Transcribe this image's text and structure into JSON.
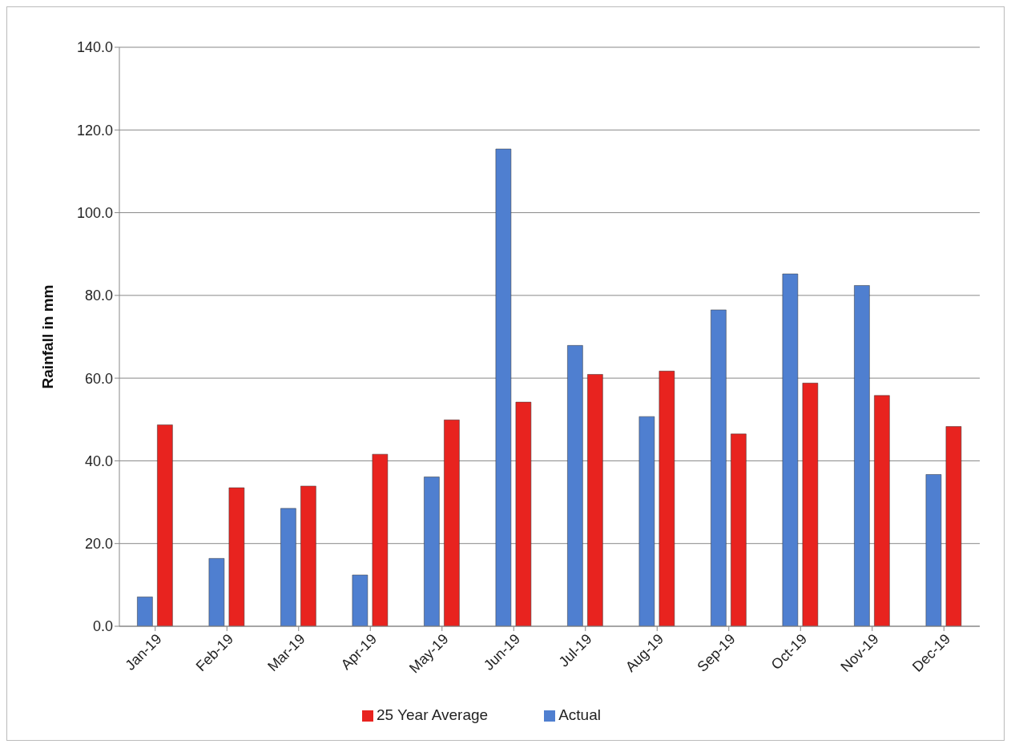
{
  "chart_data": {
    "type": "bar",
    "ylabel": "Rainfall in mm",
    "categories": [
      "Jan-19",
      "Feb-19",
      "Mar-19",
      "Apr-19",
      "May-19",
      "Jun-19",
      "Jul-19",
      "Aug-19",
      "Sep-19",
      "Oct-19",
      "Nov-19",
      "Dec-19"
    ],
    "series": [
      {
        "name": "Actual",
        "color": "#4f7fd0",
        "values": [
          7.1,
          16.4,
          28.5,
          12.4,
          36.1,
          115.4,
          67.9,
          50.7,
          76.5,
          85.2,
          82.4,
          36.7
        ]
      },
      {
        "name": "25 Year Average",
        "color": "#e8231f",
        "values": [
          48.7,
          33.5,
          33.9,
          41.6,
          49.9,
          54.2,
          60.9,
          61.7,
          46.5,
          58.8,
          55.8,
          48.3
        ]
      }
    ],
    "ylim": [
      0,
      140
    ],
    "yticks": [
      {
        "value": 0,
        "label": "0.0"
      },
      {
        "value": 20,
        "label": "20.0"
      },
      {
        "value": 40,
        "label": "40.0"
      },
      {
        "value": 60,
        "label": "60.0"
      },
      {
        "value": 80,
        "label": "80.0"
      },
      {
        "value": 100,
        "label": "100.0"
      },
      {
        "value": 120,
        "label": "120.0"
      },
      {
        "value": 140,
        "label": "140.0"
      }
    ],
    "grid": "y",
    "legend": "bottom"
  }
}
